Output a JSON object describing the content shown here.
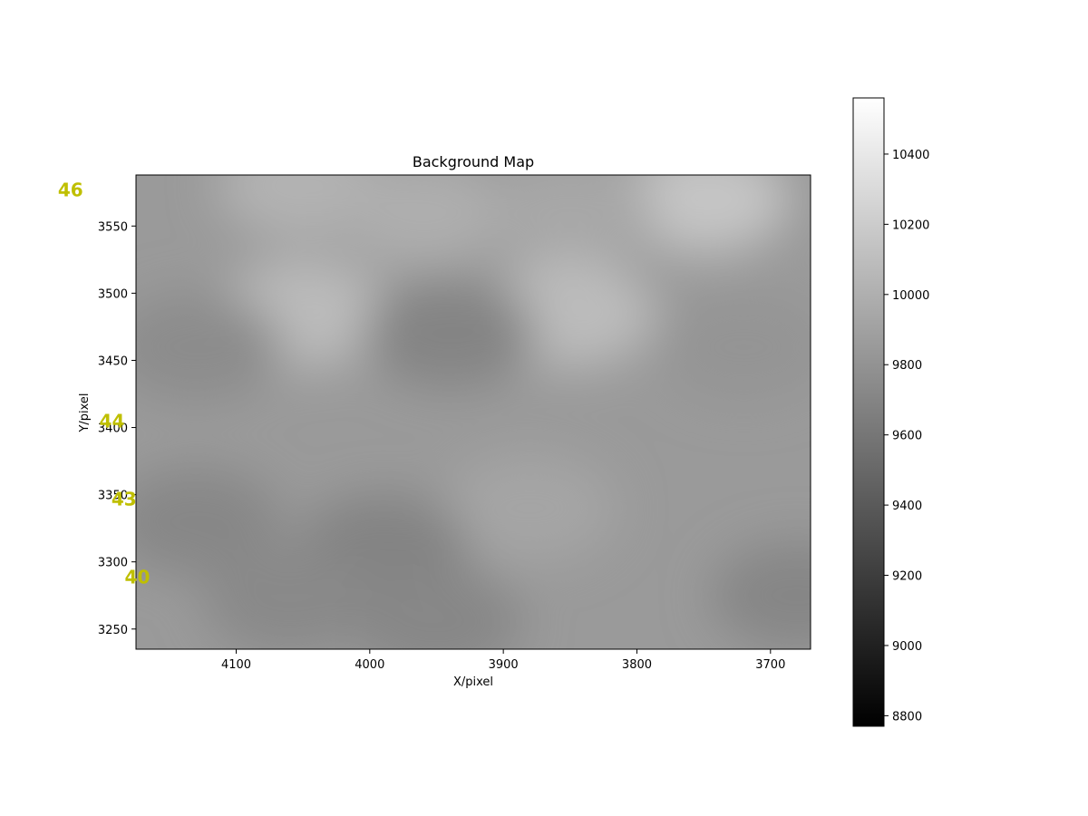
{
  "chart_data": {
    "type": "heatmap",
    "title": "Background Map",
    "xlabel": "X/pixel",
    "ylabel": "Y/pixel",
    "xlim": [
      4175,
      3670
    ],
    "ylim": [
      3235,
      3588
    ],
    "x_inverted": true,
    "xticks": [
      4100,
      4000,
      3900,
      3800,
      3700
    ],
    "yticks": [
      3250,
      3300,
      3350,
      3400,
      3450,
      3500,
      3550
    ],
    "colormap": "gray",
    "colorbar": {
      "vmin": 8770,
      "vmax": 10560,
      "ticks": [
        8800,
        9000,
        9200,
        9400,
        9600,
        9800,
        10000,
        10200,
        10400
      ]
    },
    "base_value": 9850,
    "features": [
      {
        "x": 3750,
        "y": 3570,
        "value": 10150
      },
      {
        "x": 4050,
        "y": 3580,
        "value": 10020
      },
      {
        "x": 3960,
        "y": 3560,
        "value": 9990
      },
      {
        "x": 3850,
        "y": 3560,
        "value": 9940
      },
      {
        "x": 4050,
        "y": 3485,
        "value": 10080
      },
      {
        "x": 3850,
        "y": 3485,
        "value": 10090
      },
      {
        "x": 4130,
        "y": 3460,
        "value": 9750
      },
      {
        "x": 3940,
        "y": 3470,
        "value": 9700
      },
      {
        "x": 3720,
        "y": 3460,
        "value": 9810
      },
      {
        "x": 3880,
        "y": 3340,
        "value": 9930
      },
      {
        "x": 4130,
        "y": 3330,
        "value": 9720
      },
      {
        "x": 3990,
        "y": 3310,
        "value": 9690
      },
      {
        "x": 4060,
        "y": 3270,
        "value": 9730
      },
      {
        "x": 3950,
        "y": 3255,
        "value": 9720
      },
      {
        "x": 3680,
        "y": 3275,
        "value": 9710
      }
    ],
    "annotations": [
      {
        "text": "46",
        "x": 4224,
        "y": 3572,
        "color": "#bfbf00"
      },
      {
        "text": "44",
        "x": 4193,
        "y": 3400,
        "color": "#bfbf00"
      },
      {
        "text": "43",
        "x": 4184,
        "y": 3342,
        "color": "#bfbf00"
      },
      {
        "text": "40",
        "x": 4174,
        "y": 3284,
        "color": "#bfbf00"
      }
    ]
  }
}
